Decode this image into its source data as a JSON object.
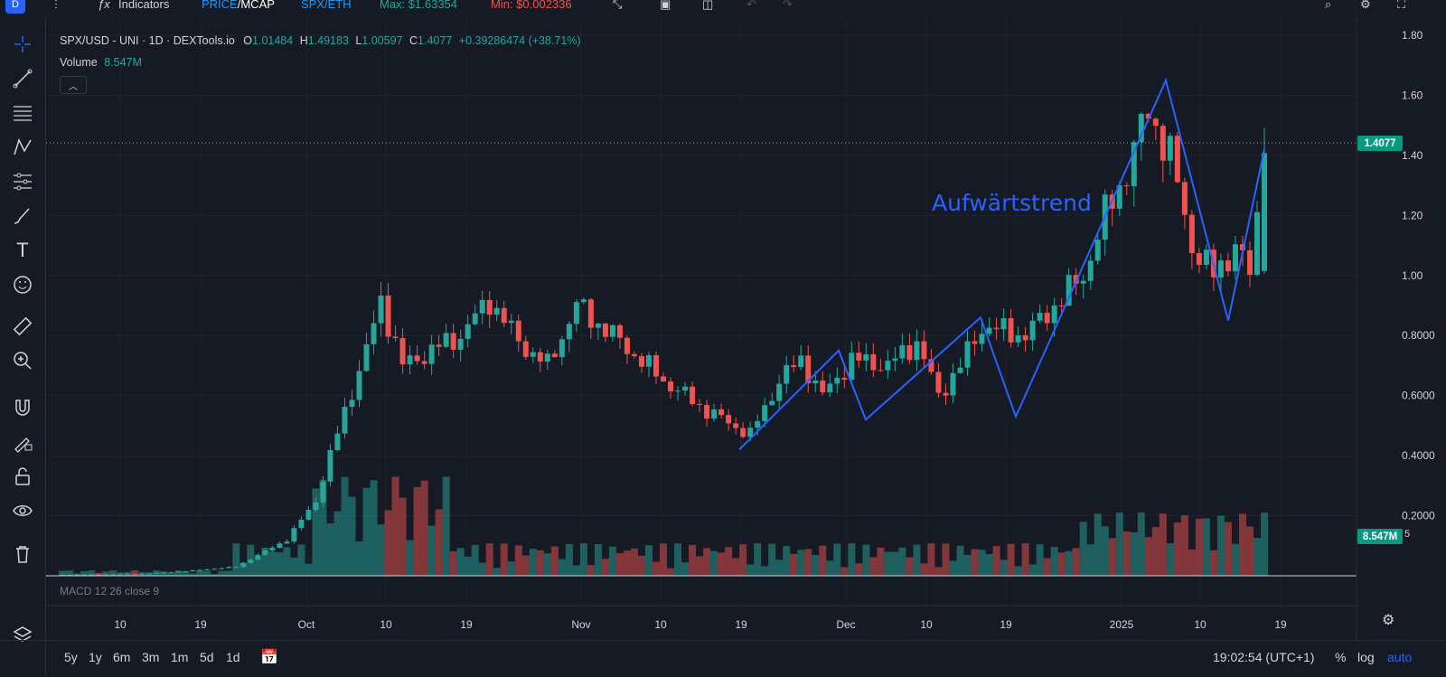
{
  "toolbar": {
    "logo": "D",
    "indicators_label": "Indicators",
    "price_mcap": "PRICE/MCAP",
    "price_prefix": "PRICE",
    "mcap_suffix": "/MCAP",
    "pair_toggle": "SPX/ETH",
    "max_label": "Max: $1.63354",
    "min_label": "Min: $0.002336"
  },
  "legend": {
    "symbol": "SPX/USD - UNI · 1D · DEXTools.io",
    "open_label": "O",
    "open_value": "1.01484",
    "high_label": "H",
    "high_value": "1.49183",
    "low_label": "L",
    "low_value": "1.00597",
    "close_label": "C",
    "close_value": "1.4077",
    "change": "+0.39286474 (+38.71%)",
    "volume_label": "Volume",
    "volume_value": "8.547M"
  },
  "annotation": "Aufwärtstrend",
  "macd_label": "MACD 12 26 close 9",
  "price_axis": {
    "ticks": [
      "1.80",
      "1.60",
      "1.40",
      "1.20",
      "1.00",
      "0.8000",
      "0.6000",
      "0.4000",
      "0.2000"
    ],
    "current_price": "1.4077",
    "current_volume": "8.547M",
    "volume_suffix": "5"
  },
  "time_axis": {
    "labels": [
      "10",
      "19",
      "Oct",
      "10",
      "19",
      "Nov",
      "10",
      "19",
      "Dec",
      "10",
      "19",
      "2025",
      "10",
      "19"
    ]
  },
  "bottom": {
    "timeframes": [
      "5y",
      "1y",
      "6m",
      "3m",
      "1m",
      "5d",
      "1d"
    ],
    "clock": "19:02:54 (UTC+1)",
    "percent": "%",
    "log": "log",
    "auto": "auto"
  },
  "colors": {
    "background": "#161a25",
    "up": "#26a69a",
    "down": "#ef5350",
    "annotation": "#2962ff",
    "price_tag": "#089981"
  },
  "chart_data": {
    "type": "candlestick",
    "symbol": "SPX/USD",
    "interval": "1D",
    "ylim": [
      0,
      1.8
    ],
    "trend_zigzag": [
      0.42,
      0.75,
      0.52,
      0.86,
      0.53,
      1.65,
      0.85,
      1.42
    ]
  }
}
